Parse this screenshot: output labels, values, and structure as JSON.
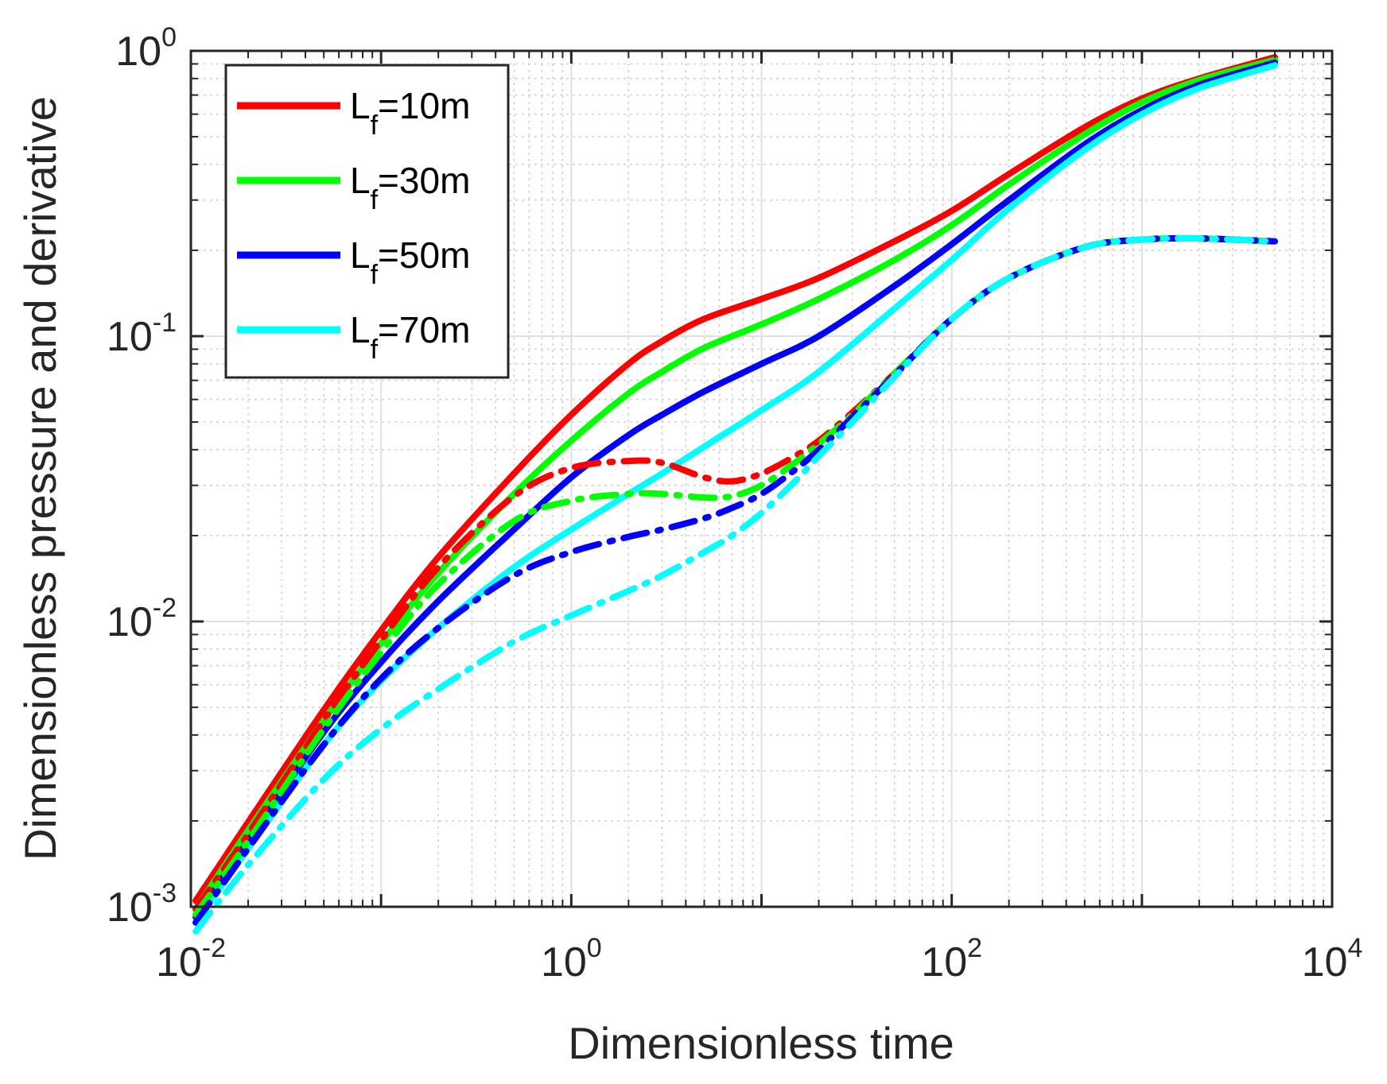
{
  "chart_data": {
    "type": "line",
    "xscale": "log",
    "yscale": "log",
    "xlim": [
      0.01,
      10000
    ],
    "ylim": [
      0.001,
      1
    ],
    "grid": true,
    "legend": "top-left",
    "xlabel": "Dimensionless time",
    "ylabel": "Dimensionless pressure and derivative",
    "x_ticks": [
      {
        "base": "10",
        "exp": "-2",
        "value": 0.01
      },
      {
        "base": "10",
        "exp": "0",
        "value": 1
      },
      {
        "base": "10",
        "exp": "2",
        "value": 100
      },
      {
        "base": "10",
        "exp": "4",
        "value": 10000
      }
    ],
    "y_ticks": [
      {
        "base": "10",
        "exp": "-3",
        "value": 0.001
      },
      {
        "base": "10",
        "exp": "-2",
        "value": 0.01
      },
      {
        "base": "10",
        "exp": "-1",
        "value": 0.1
      },
      {
        "base": "10",
        "exp": "0",
        "value": 1
      }
    ],
    "legend_entries": [
      {
        "prefix": "L",
        "sub": "f",
        "suffix": "=10m",
        "color": "#ff0000"
      },
      {
        "prefix": "L",
        "sub": "f",
        "suffix": "=30m",
        "color": "#00ff00"
      },
      {
        "prefix": "L",
        "sub": "f",
        "suffix": "=50m",
        "color": "#0000ff"
      },
      {
        "prefix": "L",
        "sub": "f",
        "suffix": "=70m",
        "color": "#00ffff"
      }
    ],
    "series": [
      {
        "kind": "pressure",
        "color": "#ff0000",
        "x": [
          0.0106,
          0.02,
          0.05,
          0.1,
          0.2,
          0.5,
          1,
          2,
          3,
          5,
          10,
          20,
          50,
          100,
          200,
          500,
          1000,
          2000,
          5000
        ],
        "y": [
          0.00105,
          0.00198,
          0.0049,
          0.0093,
          0.0168,
          0.033,
          0.053,
          0.08,
          0.096,
          0.115,
          0.135,
          0.16,
          0.215,
          0.275,
          0.37,
          0.54,
          0.68,
          0.8,
          0.95
        ]
      },
      {
        "kind": "pressure",
        "color": "#00ff00",
        "x": [
          0.0106,
          0.02,
          0.05,
          0.1,
          0.2,
          0.5,
          1,
          2,
          3,
          5,
          10,
          20,
          50,
          100,
          200,
          500,
          1000,
          2000,
          5000
        ],
        "y": [
          0.00098,
          0.00185,
          0.0045,
          0.0084,
          0.0148,
          0.028,
          0.043,
          0.063,
          0.075,
          0.091,
          0.11,
          0.135,
          0.185,
          0.245,
          0.34,
          0.51,
          0.66,
          0.79,
          0.93
        ]
      },
      {
        "kind": "pressure",
        "color": "#0000ff",
        "x": [
          0.0106,
          0.02,
          0.05,
          0.1,
          0.2,
          0.5,
          1,
          2,
          3,
          5,
          10,
          20,
          50,
          100,
          200,
          500,
          1000,
          2000,
          5000
        ],
        "y": [
          0.00092,
          0.0017,
          0.0041,
          0.0072,
          0.0118,
          0.021,
          0.032,
          0.045,
          0.053,
          0.064,
          0.08,
          0.1,
          0.15,
          0.21,
          0.3,
          0.47,
          0.62,
          0.76,
          0.91
        ]
      },
      {
        "kind": "pressure",
        "color": "#00ffff",
        "x": [
          0.0106,
          0.02,
          0.05,
          0.1,
          0.2,
          0.5,
          1,
          2,
          3,
          5,
          10,
          20,
          50,
          100,
          200,
          500,
          1000,
          2000,
          5000
        ],
        "y": [
          0.00088,
          0.0016,
          0.0037,
          0.0062,
          0.0095,
          0.0155,
          0.021,
          0.028,
          0.033,
          0.041,
          0.055,
          0.075,
          0.125,
          0.185,
          0.28,
          0.45,
          0.6,
          0.74,
          0.89
        ]
      },
      {
        "kind": "derivative",
        "color": "#ff0000",
        "x": [
          0.0106,
          0.02,
          0.05,
          0.1,
          0.2,
          0.5,
          1,
          2,
          3,
          5,
          7,
          10,
          15,
          20,
          30,
          50,
          100,
          200,
          500,
          1000,
          2000,
          5000
        ],
        "y": [
          0.00098,
          0.0018,
          0.0045,
          0.0086,
          0.0155,
          0.0275,
          0.0345,
          0.0365,
          0.036,
          0.032,
          0.031,
          0.033,
          0.038,
          0.043,
          0.054,
          0.074,
          0.115,
          0.16,
          0.205,
          0.218,
          0.22,
          0.215
        ]
      },
      {
        "kind": "derivative",
        "color": "#00ff00",
        "x": [
          0.0106,
          0.02,
          0.05,
          0.1,
          0.2,
          0.5,
          1,
          2,
          3,
          5,
          7,
          10,
          15,
          20,
          30,
          50,
          100,
          200,
          500,
          1000,
          2000,
          5000
        ],
        "y": [
          0.00094,
          0.0017,
          0.0042,
          0.0078,
          0.0135,
          0.0225,
          0.0265,
          0.028,
          0.028,
          0.0272,
          0.0275,
          0.03,
          0.036,
          0.042,
          0.053,
          0.074,
          0.115,
          0.16,
          0.205,
          0.218,
          0.22,
          0.215
        ]
      },
      {
        "kind": "derivative",
        "color": "#0000ff",
        "x": [
          0.0106,
          0.02,
          0.05,
          0.1,
          0.2,
          0.5,
          1,
          2,
          3,
          5,
          7,
          10,
          15,
          20,
          30,
          50,
          100,
          200,
          500,
          1000,
          2000,
          5000
        ],
        "y": [
          0.00088,
          0.0016,
          0.0037,
          0.0063,
          0.0095,
          0.0145,
          0.0175,
          0.0198,
          0.021,
          0.023,
          0.025,
          0.028,
          0.034,
          0.04,
          0.052,
          0.073,
          0.115,
          0.16,
          0.205,
          0.218,
          0.22,
          0.215
        ]
      },
      {
        "kind": "derivative",
        "color": "#00ffff",
        "x": [
          0.0106,
          0.02,
          0.05,
          0.1,
          0.2,
          0.5,
          1,
          2,
          3,
          5,
          7,
          10,
          15,
          20,
          30,
          50,
          100,
          200,
          500,
          1000,
          2000,
          5000
        ],
        "y": [
          0.00082,
          0.0014,
          0.0028,
          0.0042,
          0.0058,
          0.0085,
          0.0105,
          0.0128,
          0.0145,
          0.0175,
          0.02,
          0.024,
          0.031,
          0.038,
          0.05,
          0.072,
          0.115,
          0.16,
          0.205,
          0.218,
          0.22,
          0.215
        ]
      }
    ]
  }
}
